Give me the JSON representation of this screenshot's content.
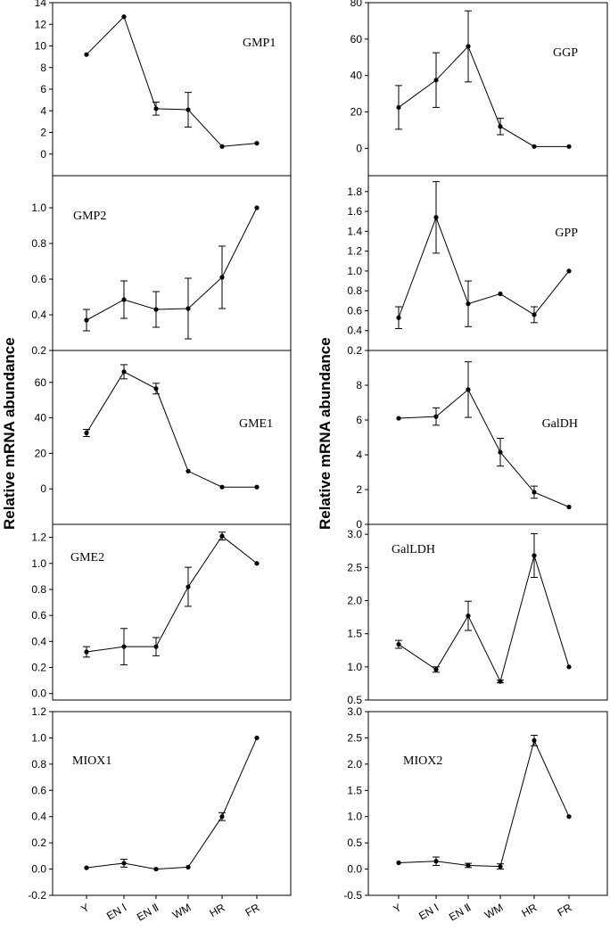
{
  "figure": {
    "y_axis_label": "Relative mRNA abundance",
    "categories": [
      "Y",
      "EN Ⅰ",
      "EN Ⅱ",
      "WM",
      "HR",
      "FR"
    ]
  },
  "chart_data": [
    {
      "type": "line",
      "title": "GMP1",
      "column": "left",
      "row": 0,
      "categories": [
        "Y",
        "EN Ⅰ",
        "EN Ⅱ",
        "WM",
        "HR",
        "FR"
      ],
      "values": [
        9.2,
        12.7,
        4.2,
        4.1,
        0.7,
        1.0
      ],
      "errors": [
        0,
        0,
        0.6,
        1.6,
        0,
        0
      ],
      "ylim": [
        -2,
        14
      ],
      "yticks": [
        0,
        2,
        4,
        6,
        8,
        10,
        12,
        14
      ],
      "ytick_labels": [
        "0",
        "2",
        "4",
        "6",
        "8",
        "10",
        "12",
        "14"
      ]
    },
    {
      "type": "line",
      "title": "GGP",
      "column": "right",
      "row": 0,
      "categories": [
        "Y",
        "EN Ⅰ",
        "EN Ⅱ",
        "WM",
        "HR",
        "FR"
      ],
      "values": [
        22.5,
        37.5,
        56,
        12,
        1,
        1
      ],
      "errors": [
        12,
        15,
        19.5,
        4.5,
        0,
        0
      ],
      "ylim": [
        -15,
        80
      ],
      "yticks": [
        0,
        20,
        40,
        60,
        80
      ],
      "ytick_labels": [
        "0",
        "20",
        "40",
        "60",
        "80"
      ]
    },
    {
      "type": "line",
      "title": "GMP2",
      "column": "left",
      "row": 1,
      "categories": [
        "Y",
        "EN Ⅰ",
        "EN Ⅱ",
        "WM",
        "HR",
        "FR"
      ],
      "values": [
        0.37,
        0.485,
        0.43,
        0.435,
        0.61,
        1.0
      ],
      "errors": [
        0.06,
        0.105,
        0.1,
        0.17,
        0.175,
        0
      ],
      "ylim": [
        0.2,
        1.18
      ],
      "yticks": [
        0.2,
        0.4,
        0.6,
        0.8,
        1.0
      ],
      "ytick_labels": [
        "0.2",
        "0.4",
        "0.6",
        "0.8",
        "1.0"
      ]
    },
    {
      "type": "line",
      "title": "GPP",
      "column": "right",
      "row": 1,
      "categories": [
        "Y",
        "EN Ⅰ",
        "EN Ⅱ",
        "WM",
        "HR",
        "FR"
      ],
      "values": [
        0.53,
        1.54,
        0.67,
        0.77,
        0.56,
        1.0
      ],
      "errors": [
        0.11,
        0.36,
        0.23,
        0,
        0.08,
        0
      ],
      "ylim": [
        0.2,
        1.96
      ],
      "yticks": [
        0.2,
        0.4,
        0.6,
        0.8,
        1.0,
        1.2,
        1.4,
        1.6,
        1.8
      ],
      "ytick_labels": [
        "0.2",
        "0.4",
        "0.6",
        "0.8",
        "1.0",
        "1.2",
        "1.4",
        "1.6",
        "1.8"
      ]
    },
    {
      "type": "line",
      "title": "GME1",
      "column": "left",
      "row": 2,
      "categories": [
        "Y",
        "EN Ⅰ",
        "EN Ⅱ",
        "WM",
        "HR",
        "FR"
      ],
      "values": [
        31.5,
        66,
        56.5,
        10,
        1,
        1
      ],
      "errors": [
        2,
        4,
        3,
        0,
        0,
        0
      ],
      "ylim": [
        -20,
        78
      ],
      "yticks": [
        0,
        20,
        40,
        60
      ],
      "ytick_labels": [
        "0",
        "20",
        "40",
        "60"
      ]
    },
    {
      "type": "line",
      "title": "GalDH",
      "column": "right",
      "row": 2,
      "categories": [
        "Y",
        "EN Ⅰ",
        "EN Ⅱ",
        "WM",
        "HR",
        "FR"
      ],
      "values": [
        6.1,
        6.2,
        7.75,
        4.15,
        1.85,
        1.0
      ],
      "errors": [
        0,
        0.5,
        1.6,
        0.8,
        0.35,
        0
      ],
      "ylim": [
        0,
        10
      ],
      "yticks": [
        0,
        2,
        4,
        6,
        8
      ],
      "ytick_labels": [
        "0",
        "2",
        "4",
        "6",
        "8"
      ]
    },
    {
      "type": "line",
      "title": "GME2",
      "column": "left",
      "row": 3,
      "categories": [
        "Y",
        "EN Ⅰ",
        "EN Ⅱ",
        "WM",
        "HR",
        "FR"
      ],
      "values": [
        0.32,
        0.36,
        0.36,
        0.82,
        1.21,
        1.0
      ],
      "errors": [
        0.04,
        0.14,
        0.07,
        0.15,
        0.03,
        0
      ],
      "ylim": [
        -0.05,
        1.3
      ],
      "yticks": [
        0.0,
        0.2,
        0.4,
        0.6,
        0.8,
        1.0,
        1.2
      ],
      "ytick_labels": [
        "0.0",
        "0.2",
        "0.4",
        "0.6",
        "0.8",
        "1.0",
        "1.2"
      ]
    },
    {
      "type": "line",
      "title": "GalLDH",
      "column": "right",
      "row": 3,
      "categories": [
        "Y",
        "EN Ⅰ",
        "EN Ⅱ",
        "WM",
        "HR",
        "FR"
      ],
      "values": [
        1.34,
        0.96,
        1.77,
        0.78,
        2.68,
        1.0
      ],
      "errors": [
        0.06,
        0.04,
        0.22,
        0.02,
        0.33,
        0
      ],
      "ylim": [
        0.5,
        3.15
      ],
      "yticks": [
        0.5,
        1.0,
        1.5,
        2.0,
        2.5,
        3.0
      ],
      "ytick_labels": [
        "0.5",
        "1.0",
        "1.5",
        "2.0",
        "2.5",
        "3.0"
      ]
    },
    {
      "type": "line",
      "title": "MIOX1",
      "column": "left",
      "row": 4,
      "categories": [
        "Y",
        "EN Ⅰ",
        "EN Ⅱ",
        "WM",
        "HR",
        "FR"
      ],
      "values": [
        0.01,
        0.045,
        0.0,
        0.015,
        0.4,
        1.0
      ],
      "errors": [
        0,
        0.03,
        0,
        0,
        0.03,
        0
      ],
      "ylim": [
        -0.2,
        1.2
      ],
      "yticks": [
        -0.2,
        0.0,
        0.2,
        0.4,
        0.6,
        0.8,
        1.0,
        1.2
      ],
      "ytick_labels": [
        "-0.2",
        "0.0",
        "0.2",
        "0.4",
        "0.6",
        "0.8",
        "1.0",
        "1.2"
      ]
    },
    {
      "type": "line",
      "title": "MIOX2",
      "column": "right",
      "row": 4,
      "categories": [
        "Y",
        "EN Ⅰ",
        "EN Ⅱ",
        "WM",
        "HR",
        "FR"
      ],
      "values": [
        0.12,
        0.15,
        0.07,
        0.05,
        2.45,
        1.0
      ],
      "errors": [
        0,
        0.08,
        0.04,
        0.05,
        0.1,
        0
      ],
      "ylim": [
        -0.5,
        3.0
      ],
      "yticks": [
        -0.5,
        0.0,
        0.5,
        1.0,
        1.5,
        2.0,
        2.5,
        3.0
      ],
      "ytick_labels": [
        "-0.5",
        "0.0",
        "0.5",
        "1.0",
        "1.5",
        "2.0",
        "2.5",
        "3.0"
      ]
    }
  ]
}
